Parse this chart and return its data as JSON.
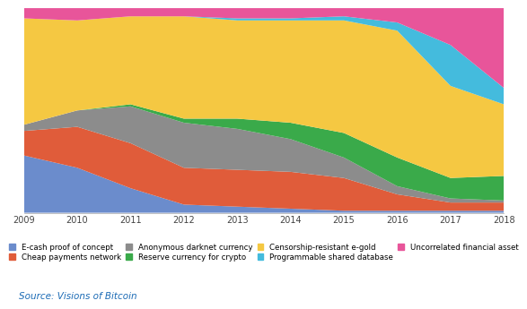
{
  "years": [
    2009,
    2010,
    2011,
    2012,
    2013,
    2014,
    2015,
    2016,
    2017,
    2018
  ],
  "series": {
    "E-cash proof of concept": [
      28,
      22,
      12,
      4,
      3,
      2,
      1,
      1,
      1,
      1
    ],
    "Cheap payments network": [
      12,
      20,
      22,
      18,
      18,
      18,
      16,
      8,
      4,
      4
    ],
    "Anonymous darknet currency": [
      3,
      8,
      18,
      22,
      20,
      16,
      10,
      4,
      2,
      1
    ],
    "Reserve currency for crypto": [
      0,
      0,
      1,
      2,
      5,
      8,
      12,
      14,
      10,
      12
    ],
    "Censorship-resistant e-gold": [
      52,
      44,
      43,
      50,
      48,
      50,
      55,
      62,
      45,
      35
    ],
    "Programmable shared database": [
      0,
      0,
      0,
      0,
      1,
      1,
      2,
      4,
      20,
      8
    ],
    "Uncorrelated financial asset": [
      5,
      6,
      4,
      4,
      5,
      5,
      4,
      7,
      18,
      39
    ]
  },
  "colors": {
    "E-cash proof of concept": "#6b8ccc",
    "Cheap payments network": "#e05c3a",
    "Anonymous darknet currency": "#8c8c8c",
    "Reserve currency for crypto": "#3aaa4a",
    "Censorship-resistant e-gold": "#f5c842",
    "Programmable shared database": "#44bbdd",
    "Uncorrelated financial asset": "#e8559a"
  },
  "background_color": "#ffffff",
  "source_text": "Source: Visions of Bitcoin",
  "legend_fontsize": 6.2,
  "tick_fontsize": 7
}
